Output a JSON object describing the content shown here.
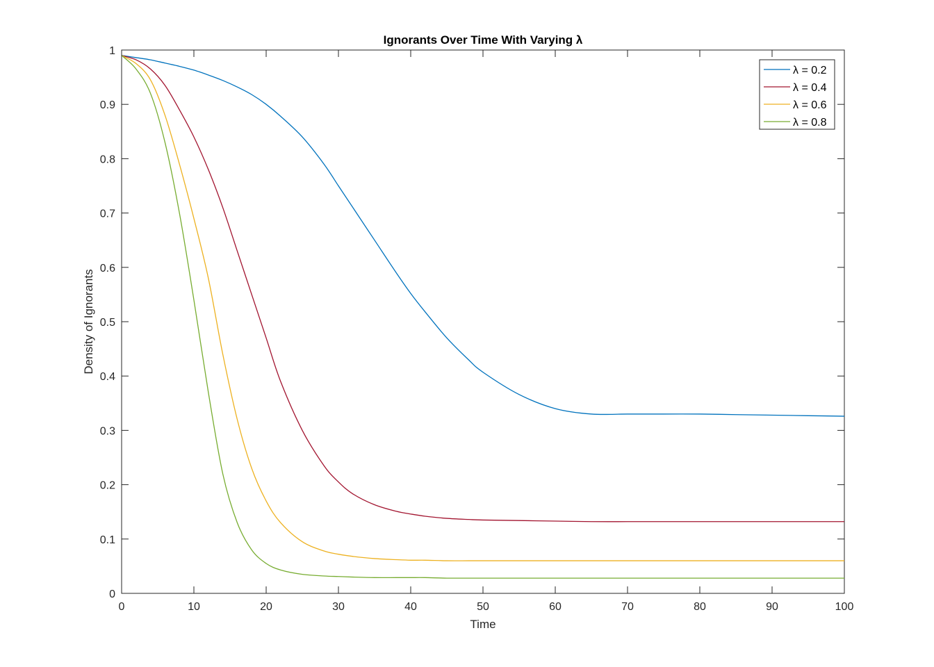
{
  "chart_data": {
    "type": "line",
    "title": "Ignorants Over Time With Varying λ",
    "xlabel": "Time",
    "ylabel": "Density of Ignorants",
    "xlim": [
      0,
      100
    ],
    "ylim": [
      0,
      1
    ],
    "xticks": [
      0,
      10,
      20,
      30,
      40,
      50,
      60,
      70,
      80,
      90,
      100
    ],
    "yticks": [
      0,
      0.1,
      0.2,
      0.3,
      0.4,
      0.5,
      0.6,
      0.7,
      0.8,
      0.9,
      1
    ],
    "grid": false,
    "legend_position": "top-right",
    "x": [
      0,
      2,
      4,
      6,
      8,
      10,
      12,
      14,
      16,
      18,
      20,
      22,
      25,
      28,
      30,
      32,
      35,
      38,
      40,
      42,
      45,
      48,
      50,
      55,
      60,
      65,
      70,
      75,
      80,
      85,
      90,
      95,
      100
    ],
    "series": [
      {
        "name": "λ = 0.2",
        "color": "#0072BD",
        "values": [
          0.99,
          0.986,
          0.982,
          0.976,
          0.97,
          0.963,
          0.954,
          0.944,
          0.932,
          0.918,
          0.9,
          0.878,
          0.84,
          0.79,
          0.75,
          0.71,
          0.65,
          0.59,
          0.552,
          0.518,
          0.47,
          0.43,
          0.407,
          0.366,
          0.34,
          0.33,
          0.33,
          0.33,
          0.33,
          0.329,
          0.328,
          0.327,
          0.326
        ]
      },
      {
        "name": "λ = 0.4",
        "color": "#A2142F",
        "values": [
          0.99,
          0.982,
          0.965,
          0.935,
          0.89,
          0.84,
          0.78,
          0.71,
          0.63,
          0.55,
          0.47,
          0.39,
          0.3,
          0.235,
          0.205,
          0.183,
          0.163,
          0.151,
          0.146,
          0.142,
          0.138,
          0.136,
          0.135,
          0.134,
          0.133,
          0.132,
          0.132,
          0.132,
          0.132,
          0.132,
          0.132,
          0.132,
          0.132
        ]
      },
      {
        "name": "λ = 0.6",
        "color": "#EDB120",
        "values": [
          0.99,
          0.975,
          0.945,
          0.88,
          0.79,
          0.69,
          0.58,
          0.44,
          0.32,
          0.23,
          0.17,
          0.13,
          0.095,
          0.078,
          0.072,
          0.068,
          0.064,
          0.062,
          0.061,
          0.061,
          0.06,
          0.06,
          0.06,
          0.06,
          0.06,
          0.06,
          0.06,
          0.06,
          0.06,
          0.06,
          0.06,
          0.06,
          0.06
        ]
      },
      {
        "name": "λ = 0.8",
        "color": "#77AC30",
        "values": [
          0.99,
          0.965,
          0.92,
          0.83,
          0.7,
          0.54,
          0.37,
          0.22,
          0.13,
          0.08,
          0.055,
          0.043,
          0.035,
          0.032,
          0.031,
          0.03,
          0.029,
          0.029,
          0.029,
          0.029,
          0.028,
          0.028,
          0.028,
          0.028,
          0.028,
          0.028,
          0.028,
          0.028,
          0.028,
          0.028,
          0.028,
          0.028,
          0.028
        ]
      }
    ]
  }
}
